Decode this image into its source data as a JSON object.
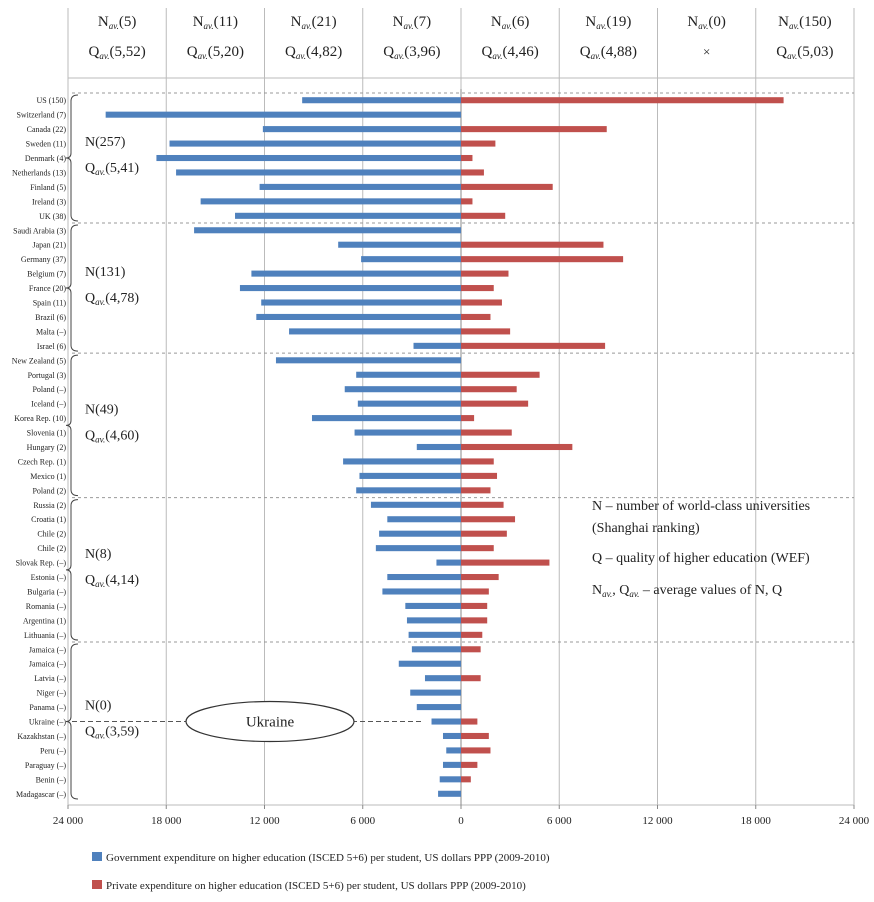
{
  "chart_data": {
    "type": "bar",
    "orientation": "horizontal-diverging",
    "x_ticks": [
      "24 000",
      "18 000",
      "12 000",
      "6 000",
      "0",
      "6 000",
      "12 000",
      "18 000",
      "24 000"
    ],
    "xlim": [
      -24000,
      24000
    ],
    "colors": {
      "government": "#4f81bd",
      "private": "#c0504d"
    },
    "series": [
      {
        "name": "Government expenditure on higher education (ISCED 5+6) per student, US dollars PPP (2009-2010)",
        "key": "gov"
      },
      {
        "name": "Private expenditure on higher education (ISCED 5+6) per student, US dollars PPP (2009-2010)",
        "key": "priv"
      }
    ],
    "categories": [
      {
        "label": "US (150)",
        "gov": 9700,
        "priv": 19700
      },
      {
        "label": "Switzerland (7)",
        "gov": 21700,
        "priv": 0
      },
      {
        "label": "Canada (22)",
        "gov": 12100,
        "priv": 8900
      },
      {
        "label": "Sweden (11)",
        "gov": 17800,
        "priv": 2100
      },
      {
        "label": "Denmark (4)",
        "gov": 18600,
        "priv": 700
      },
      {
        "label": "Netherlands (13)",
        "gov": 17400,
        "priv": 1400
      },
      {
        "label": "Finland (5)",
        "gov": 12300,
        "priv": 5600
      },
      {
        "label": "Ireland (3)",
        "gov": 15900,
        "priv": 700
      },
      {
        "label": "UK (38)",
        "gov": 13800,
        "priv": 2700
      },
      {
        "label": "Saudi Arabia (3)",
        "gov": 16300,
        "priv": 0
      },
      {
        "label": "Japan (21)",
        "gov": 7500,
        "priv": 8700
      },
      {
        "label": "Germany (37)",
        "gov": 6100,
        "priv": 9900
      },
      {
        "label": "Belgium (7)",
        "gov": 12800,
        "priv": 2900
      },
      {
        "label": "France (20)",
        "gov": 13500,
        "priv": 2000
      },
      {
        "label": "Spain (11)",
        "gov": 12200,
        "priv": 2500
      },
      {
        "label": "Brazil (6)",
        "gov": 12500,
        "priv": 1800
      },
      {
        "label": "Malta (–)",
        "gov": 10500,
        "priv": 3000
      },
      {
        "label": "Israel (6)",
        "gov": 2900,
        "priv": 8800
      },
      {
        "label": "New Zealand (5)",
        "gov": 11300,
        "priv": 0
      },
      {
        "label": "Portugal (3)",
        "gov": 6400,
        "priv": 4800
      },
      {
        "label": "Poland (–)",
        "gov": 7100,
        "priv": 3400
      },
      {
        "label": "Iceland (–)",
        "gov": 6300,
        "priv": 4100
      },
      {
        "label": "Korea Rep. (10)",
        "gov": 9100,
        "priv": 800
      },
      {
        "label": "Slovenia (1)",
        "gov": 6500,
        "priv": 3100
      },
      {
        "label": "Hungary (2)",
        "gov": 2700,
        "priv": 6800
      },
      {
        "label": "Czech Rep. (1)",
        "gov": 7200,
        "priv": 2000
      },
      {
        "label": "Mexico (1)",
        "gov": 6200,
        "priv": 2200
      },
      {
        "label": "Poland (2)",
        "gov": 6400,
        "priv": 1800
      },
      {
        "label": "Russia (2)",
        "gov": 5500,
        "priv": 2600
      },
      {
        "label": "Croatia (1)",
        "gov": 4500,
        "priv": 3300
      },
      {
        "label": "Chile (2)",
        "gov": 5000,
        "priv": 2800
      },
      {
        "label": "Chile (2)",
        "gov": 5200,
        "priv": 2000
      },
      {
        "label": "Slovak Rep. (–)",
        "gov": 1500,
        "priv": 5400
      },
      {
        "label": "Estonia (–)",
        "gov": 4500,
        "priv": 2300
      },
      {
        "label": "Bulgaria (–)",
        "gov": 4800,
        "priv": 1700
      },
      {
        "label": "Romania (–)",
        "gov": 3400,
        "priv": 1600
      },
      {
        "label": "Argentina (1)",
        "gov": 3300,
        "priv": 1600
      },
      {
        "label": "Lithuania (–)",
        "gov": 3200,
        "priv": 1300
      },
      {
        "label": "Jamaica (–)",
        "gov": 3000,
        "priv": 1200
      },
      {
        "label": "Jamaica (–)",
        "gov": 3800,
        "priv": 0
      },
      {
        "label": "Latvia (–)",
        "gov": 2200,
        "priv": 1200
      },
      {
        "label": "Niger (–)",
        "gov": 3100,
        "priv": 0
      },
      {
        "label": "Panama (–)",
        "gov": 2700,
        "priv": 0
      },
      {
        "label": "Ukraine (–)",
        "gov": 1800,
        "priv": 1000
      },
      {
        "label": "Kazakhstan (–)",
        "gov": 1100,
        "priv": 1700
      },
      {
        "label": "Peru (–)",
        "gov": 900,
        "priv": 1800
      },
      {
        "label": "Paraguay (–)",
        "gov": 1100,
        "priv": 1000
      },
      {
        "label": "Benin (–)",
        "gov": 1300,
        "priv": 600
      },
      {
        "label": "Madagascar (–)",
        "gov": 1400,
        "priv": 0
      }
    ],
    "columns": [
      {
        "n": "(5)",
        "q": "(5,52)"
      },
      {
        "n": "(11)",
        "q": "(5,20)"
      },
      {
        "n": "(21)",
        "q": "(4,82)"
      },
      {
        "n": "(7)",
        "q": "(3,96)"
      },
      {
        "n": "(6)",
        "q": "(4,46)"
      },
      {
        "n": "(19)",
        "q": "(4,88)"
      },
      {
        "n": "(0)",
        "q": "×"
      },
      {
        "n": "(150)",
        "q": "(5,03)"
      }
    ],
    "groups": [
      {
        "n": "N(257)",
        "q": "(5,41)",
        "first": 0,
        "last": 8
      },
      {
        "n": "N(131)",
        "q": "(4,78)",
        "first": 9,
        "last": 17
      },
      {
        "n": "N(49)",
        "q": "(4,60)",
        "first": 18,
        "last": 27
      },
      {
        "n": "N(8)",
        "q": "(4,14)",
        "first": 28,
        "last": 37
      },
      {
        "n": "N(0)",
        "q": "(3,59)",
        "first": 38,
        "last": 48
      }
    ],
    "annotation": {
      "line1": "N – number of world-class universities",
      "line2": "(Shanghai ranking)",
      "line3": "Q – quality of higher education (WEF)",
      "line4": ", ",
      "line4b": " – average values of N, Q"
    },
    "ukraine_label": "Ukraine",
    "n_sub": "av.",
    "q_sub": "av."
  }
}
